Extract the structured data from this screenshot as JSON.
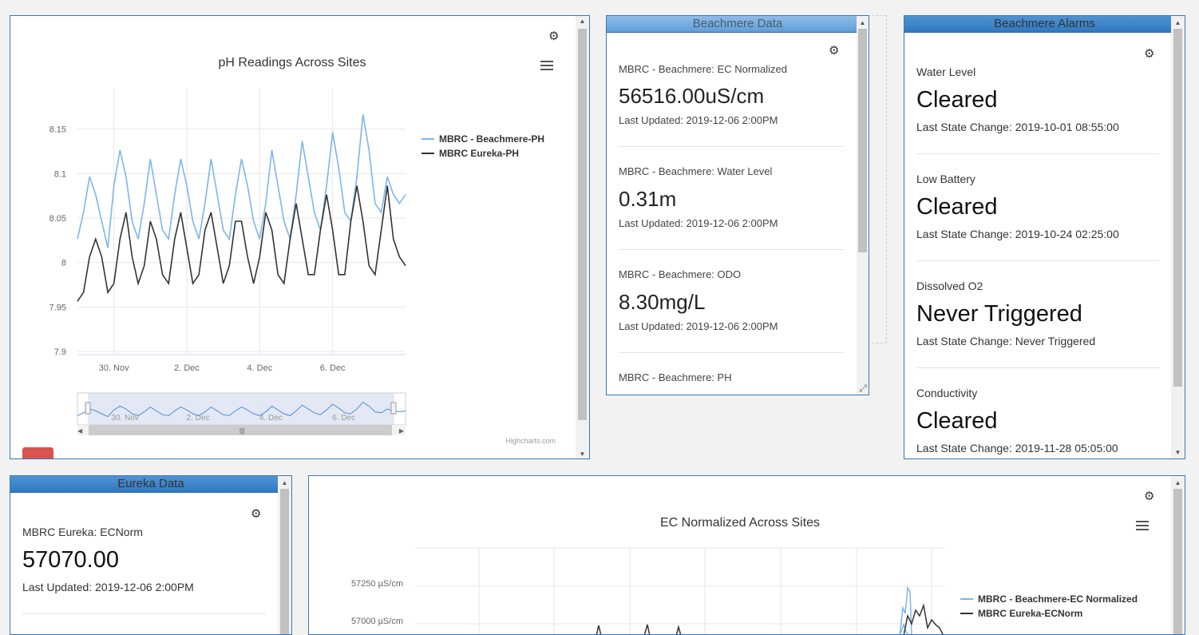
{
  "ph_chart": {
    "title": "pH Readings Across Sites",
    "credits": "Highcharts.com",
    "colors": {
      "beachmere": "#7cb5ec",
      "eureka": "#333333"
    },
    "chart_data": {
      "type": "line",
      "title": "pH Readings Across Sites",
      "x_tick_labels": [
        "30. Nov",
        "2. Dec",
        "4. Dec",
        "6. Dec"
      ],
      "y_tick_labels": [
        "7.9",
        "7.95",
        "8",
        "8.05",
        "8.1",
        "8.15"
      ],
      "ylim": [
        7.9,
        8.2
      ],
      "grid": true,
      "legend_position": "right",
      "navigator_labels": [
        "30. Nov",
        "2. Dec",
        "4. Dec",
        "6. Dec"
      ],
      "series": [
        {
          "name": "MBRC - Beachmere-PH",
          "x_days": [
            0,
            0.25,
            0.5,
            0.75,
            1,
            1.25,
            1.5,
            1.75,
            2,
            2.25,
            2.5,
            2.75,
            3,
            3.25,
            3.5,
            3.75,
            4,
            4.25,
            4.5,
            4.75,
            5,
            5.25,
            5.5,
            5.75,
            6,
            6.25,
            6.5,
            6.75,
            7,
            7.25,
            7.5,
            7.75,
            8,
            8.25,
            8.5,
            8.75,
            9,
            9.25,
            9.5,
            9.75,
            10,
            10.25,
            10.5,
            10.75,
            11,
            11.25,
            11.5,
            11.75,
            12,
            12.25,
            12.5,
            12.75,
            13,
            13.25,
            13.5
          ],
          "values": [
            8.03,
            8.06,
            8.1,
            8.08,
            8.05,
            8.02,
            8.09,
            8.13,
            8.1,
            8.05,
            8.03,
            8.07,
            8.12,
            8.08,
            8.04,
            8.03,
            8.08,
            8.12,
            8.09,
            8.05,
            8.03,
            8.07,
            8.12,
            8.08,
            8.04,
            8.03,
            8.08,
            8.12,
            8.09,
            8.05,
            8.03,
            8.07,
            8.13,
            8.09,
            8.05,
            8.03,
            8.08,
            8.14,
            8.1,
            8.06,
            8.04,
            8.09,
            8.15,
            8.11,
            8.06,
            8.05,
            8.1,
            8.17,
            8.13,
            8.07,
            8.06,
            8.1,
            8.08,
            8.07,
            8.08
          ]
        },
        {
          "name": "MBRC Eureka-PH",
          "x_days": [
            0,
            0.25,
            0.5,
            0.75,
            1,
            1.25,
            1.5,
            1.75,
            2,
            2.25,
            2.5,
            2.75,
            3,
            3.25,
            3.5,
            3.75,
            4,
            4.25,
            4.5,
            4.75,
            5,
            5.25,
            5.5,
            5.75,
            6,
            6.25,
            6.5,
            6.75,
            7,
            7.25,
            7.5,
            7.75,
            8,
            8.25,
            8.5,
            8.75,
            9,
            9.25,
            9.5,
            9.75,
            10,
            10.25,
            10.5,
            10.75,
            11,
            11.25,
            11.5,
            11.75,
            12,
            12.25,
            12.5,
            12.75,
            13,
            13.25,
            13.5
          ],
          "values": [
            7.96,
            7.97,
            8.01,
            8.03,
            8.01,
            7.97,
            7.98,
            8.03,
            8.06,
            8.01,
            7.98,
            8.0,
            8.05,
            8.03,
            7.99,
            7.98,
            8.03,
            8.06,
            8.02,
            7.98,
            7.99,
            8.04,
            8.06,
            8.02,
            7.98,
            8.0,
            8.05,
            8.05,
            8.01,
            7.98,
            8.01,
            8.06,
            8.04,
            7.99,
            7.98,
            8.03,
            8.07,
            8.03,
            7.99,
            7.99,
            8.04,
            8.08,
            8.04,
            7.99,
            7.99,
            8.05,
            8.09,
            8.05,
            8.0,
            7.99,
            8.04,
            8.09,
            8.03,
            8.01,
            8.0
          ]
        }
      ]
    }
  },
  "beachmere_data": {
    "title": "Beachmere Data",
    "items": [
      {
        "label": "MBRC - Beachmere: EC Normalized",
        "value": "56516.00uS/cm",
        "updated": "Last Updated: 2019-12-06 2:00PM"
      },
      {
        "label": "MBRC - Beachmere: Water Level",
        "value": "0.31m",
        "updated": "Last Updated: 2019-12-06 2:00PM"
      },
      {
        "label": "MBRC - Beachmere: ODO",
        "value": "8.30mg/L",
        "updated": "Last Updated: 2019-12-06 2:00PM"
      },
      {
        "label": "MBRC - Beachmere: PH",
        "value": "",
        "updated": ""
      }
    ]
  },
  "beachmere_alarms": {
    "title": "Beachmere Alarms",
    "items": [
      {
        "label": "Water Level",
        "value": "Cleared",
        "change": "Last State Change: 2019-10-01 08:55:00"
      },
      {
        "label": "Low Battery",
        "value": "Cleared",
        "change": "Last State Change: 2019-10-24 02:25:00"
      },
      {
        "label": "Dissolved O2",
        "value": "Never Triggered",
        "change": "Last State Change: Never Triggered"
      },
      {
        "label": "Conductivity",
        "value": "Cleared",
        "change": "Last State Change: 2019-11-28 05:05:00"
      }
    ]
  },
  "eureka_data": {
    "title": "Eureka Data",
    "items": [
      {
        "label": "MBRC Eureka: ECNorm",
        "value": "57070.00",
        "updated": "Last Updated: 2019-12-06 2:00PM"
      }
    ]
  },
  "ec_chart": {
    "title": "EC Normalized Across Sites",
    "colors": {
      "beachmere": "#7cb5ec",
      "eureka": "#333333"
    },
    "chart_data": {
      "type": "line",
      "title": "EC Normalized Across Sites",
      "y_tick_labels": [
        "57250 µS/cm",
        "57000 µS/cm"
      ],
      "grid": true,
      "legend_position": "right",
      "series": [
        {
          "name": "MBRC - Beachmere-EC Normalized"
        },
        {
          "name": "MBRC Eureka-ECNorm"
        }
      ]
    }
  },
  "icons": {
    "gear": "gear-icon",
    "menu": "hamburger-menu-icon",
    "resize": "resize-handle-icon"
  }
}
